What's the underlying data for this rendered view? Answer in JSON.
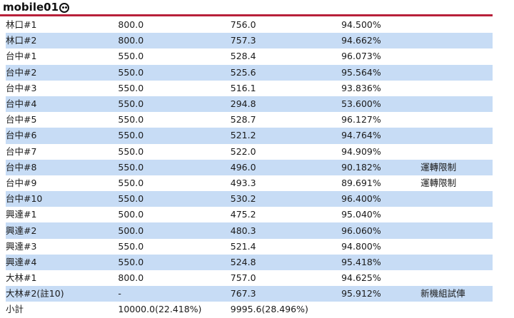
{
  "header": {
    "logo_text": "mobile01"
  },
  "rows": [
    {
      "unit": "林口#1",
      "capacity": "800.0",
      "output": "756.0",
      "rate": "94.500%",
      "note": ""
    },
    {
      "unit": "林口#2",
      "capacity": "800.0",
      "output": "757.3",
      "rate": "94.662%",
      "note": ""
    },
    {
      "unit": "台中#1",
      "capacity": "550.0",
      "output": "528.4",
      "rate": "96.073%",
      "note": ""
    },
    {
      "unit": "台中#2",
      "capacity": "550.0",
      "output": "525.6",
      "rate": "95.564%",
      "note": ""
    },
    {
      "unit": "台中#3",
      "capacity": "550.0",
      "output": "516.1",
      "rate": "93.836%",
      "note": ""
    },
    {
      "unit": "台中#4",
      "capacity": "550.0",
      "output": "294.8",
      "rate": "53.600%",
      "note": ""
    },
    {
      "unit": "台中#5",
      "capacity": "550.0",
      "output": "528.7",
      "rate": "96.127%",
      "note": ""
    },
    {
      "unit": "台中#6",
      "capacity": "550.0",
      "output": "521.2",
      "rate": "94.764%",
      "note": ""
    },
    {
      "unit": "台中#7",
      "capacity": "550.0",
      "output": "522.0",
      "rate": "94.909%",
      "note": ""
    },
    {
      "unit": "台中#8",
      "capacity": "550.0",
      "output": "496.0",
      "rate": "90.182%",
      "note": "運轉限制"
    },
    {
      "unit": "台中#9",
      "capacity": "550.0",
      "output": "493.3",
      "rate": "89.691%",
      "note": "運轉限制"
    },
    {
      "unit": "台中#10",
      "capacity": "550.0",
      "output": "530.2",
      "rate": "96.400%",
      "note": ""
    },
    {
      "unit": "興達#1",
      "capacity": "500.0",
      "output": "475.2",
      "rate": "95.040%",
      "note": ""
    },
    {
      "unit": "興達#2",
      "capacity": "500.0",
      "output": "480.3",
      "rate": "96.060%",
      "note": ""
    },
    {
      "unit": "興達#3",
      "capacity": "550.0",
      "output": "521.4",
      "rate": "94.800%",
      "note": ""
    },
    {
      "unit": "興達#4",
      "capacity": "550.0",
      "output": "524.8",
      "rate": "95.418%",
      "note": ""
    },
    {
      "unit": "大林#1",
      "capacity": "800.0",
      "output": "757.0",
      "rate": "94.625%",
      "note": ""
    },
    {
      "unit": "大林#2(註10)",
      "capacity": "-",
      "output": "767.3",
      "rate": "95.912%",
      "note": "新機組試俥"
    }
  ],
  "subtotal": {
    "label": "小計",
    "capacity": "10000.0(22.418%)",
    "output": "9995.6(28.496%)"
  },
  "colors": {
    "accent_line": "#b8203a",
    "row_alt": "#c7dcf5"
  }
}
